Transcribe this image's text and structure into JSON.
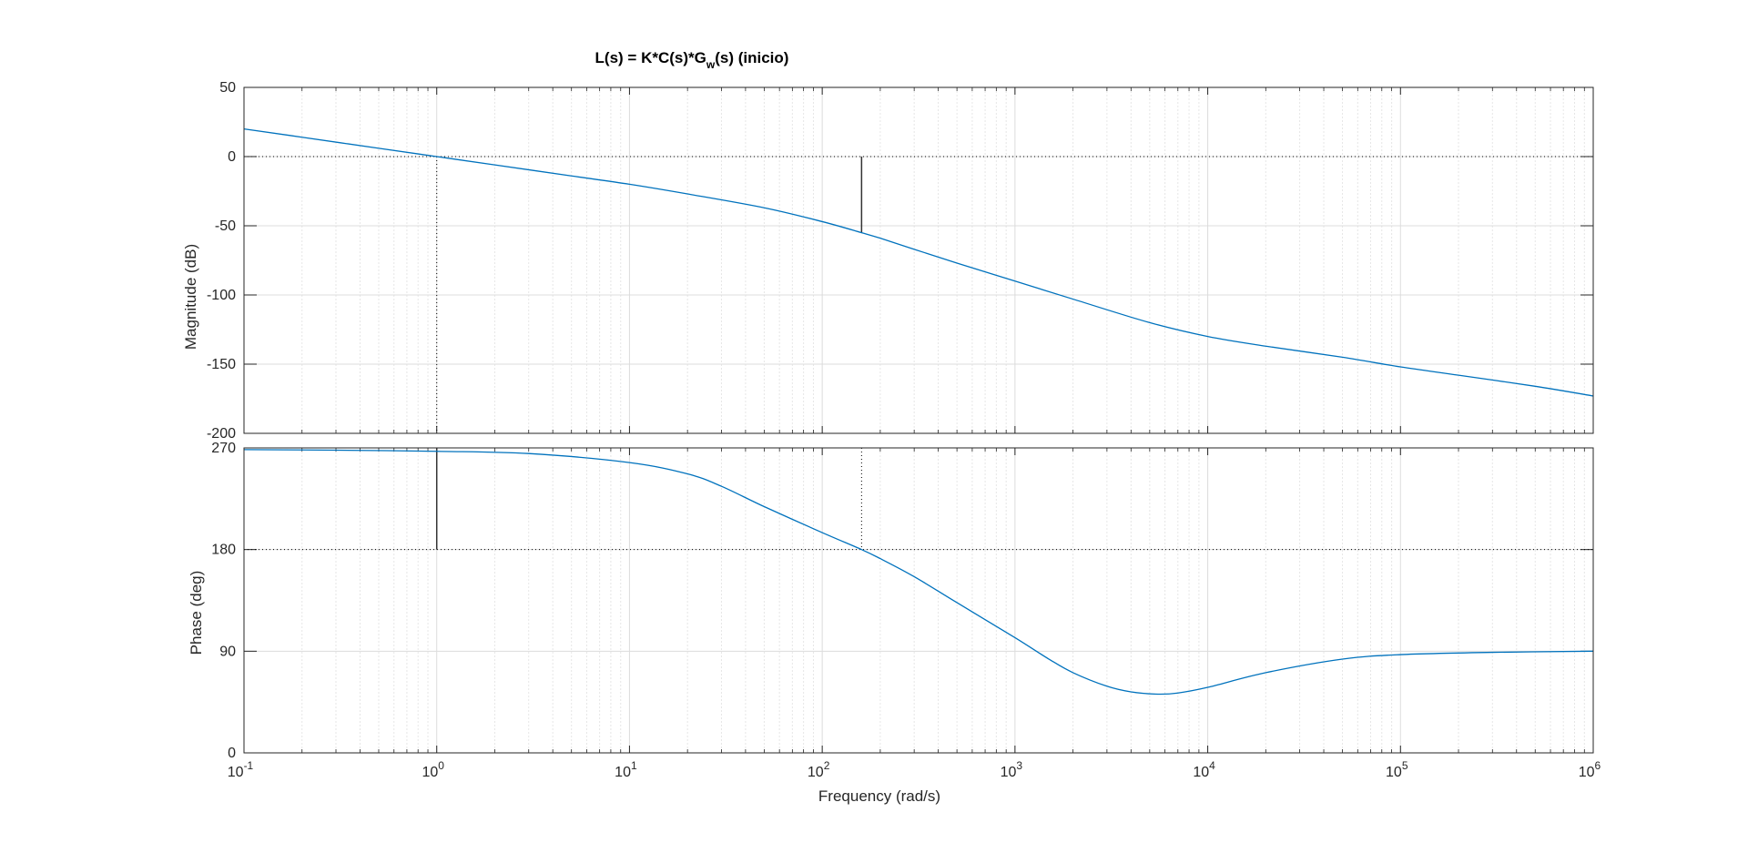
{
  "chart_data": {
    "type": "line",
    "title": {
      "main": "L(s) = K*C(s)*G",
      "sub": "w",
      "tail": "(s)  (inicio)"
    },
    "xlabel": "Frequency  (rad/s)",
    "xscale": "log",
    "xlim": [
      0.1,
      1000000
    ],
    "x_ticks": [
      {
        "base": "10",
        "exp": "-1"
      },
      {
        "base": "10",
        "exp": "0"
      },
      {
        "base": "10",
        "exp": "1"
      },
      {
        "base": "10",
        "exp": "2"
      },
      {
        "base": "10",
        "exp": "3"
      },
      {
        "base": "10",
        "exp": "4"
      },
      {
        "base": "10",
        "exp": "5"
      },
      {
        "base": "10",
        "exp": "6"
      }
    ],
    "grid": true,
    "colors": {
      "series": "#0072bd",
      "axes": "#262626",
      "grid": "#dcdcdc",
      "margin_lines": "#000000"
    },
    "panels": [
      {
        "name": "magnitude",
        "ylabel": "Magnitude (dB)",
        "ylim": [
          -200,
          50
        ],
        "y_ticks": [
          "50",
          "0",
          "-50",
          "-100",
          "-150",
          "-200"
        ],
        "reference_line": 0,
        "margin_marker": {
          "x": 160,
          "y_from": -55,
          "y_to": 0
        },
        "crossover_marker": {
          "x": 1.0
        },
        "series": [
          {
            "x": [
              0.1,
              0.2,
              0.5,
              1,
              2,
              5,
              10,
              20,
              50,
              100,
              160,
              200,
              300,
              500,
              1000,
              2000,
              5000,
              10000,
              20000,
              50000,
              100000,
              200000,
              500000,
              1000000
            ],
            "y": [
              20,
              14,
              6,
              0,
              -6,
              -14,
              -20,
              -27,
              -37,
              -47,
              -55,
              -59,
              -67,
              -77,
              -90,
              -103,
              -120,
              -130,
              -137,
              -145,
              -152,
              -158,
              -166,
              -173
            ]
          }
        ]
      },
      {
        "name": "phase",
        "ylabel": "Phase (deg)",
        "ylim": [
          0,
          270
        ],
        "y_ticks": [
          "270",
          "180",
          "90",
          "0"
        ],
        "reference_line": 180,
        "margin_marker": {
          "x": 1.0,
          "y_from": 180,
          "y_to": 270
        },
        "crossover_marker": {
          "x": 160
        },
        "series": [
          {
            "x": [
              0.1,
              0.3,
              1,
              3,
              10,
              20,
              30,
              50,
              100,
              160,
              200,
              300,
              500,
              1000,
              1500,
              2000,
              3000,
              4000,
              5500,
              7000,
              10000,
              20000,
              50000,
              100000,
              300000,
              1000000
            ],
            "y": [
              268.5,
              268,
              267,
              265,
              257,
              247,
              236,
              218,
              195,
              180,
              172,
              156,
              133,
              102,
              83,
              71,
              59,
              54,
              52,
              53,
              58,
              71,
              83,
              87,
              89,
              90
            ]
          }
        ]
      }
    ]
  }
}
